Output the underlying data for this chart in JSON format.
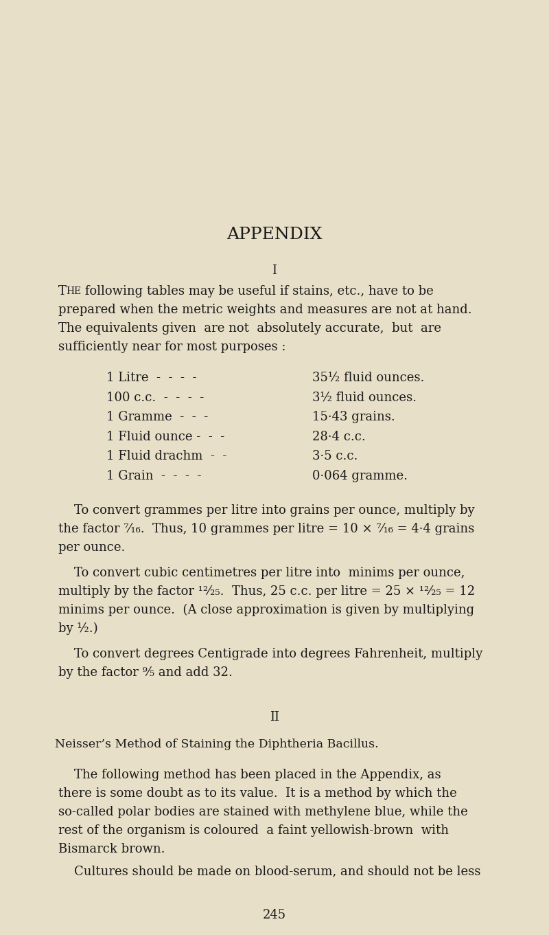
{
  "bg_color": "#e8dfc8",
  "text_color": "#1a1a1a",
  "page_width": 8.0,
  "page_height": 13.61,
  "title": "APPENDIX",
  "section_i": "I",
  "section_ii": "II",
  "intro_text_line0_T": "T",
  "intro_text_line0_HE": "HE",
  "intro_text_line0_rest": " following tables may be useful if stains, etc., have to be",
  "intro_text_lines": [
    "prepared when the metric weights and measures are not at hand.",
    "The equivalents given  are not  absolutely accurate,  but  are",
    "sufficiently near for most purposes :"
  ],
  "table_rows": [
    [
      "1 Litre  -  -  -  -",
      "35½ fluid ounces."
    ],
    [
      "100 c.c.  -  -  -  -",
      "3½ fluid ounces."
    ],
    [
      "1 Gramme  -  -  -",
      "15·43 grains."
    ],
    [
      "1 Fluid ounce -  -  -",
      "28·4 c.c."
    ],
    [
      "1 Fluid drachm  -  -",
      "3·5 c.c."
    ],
    [
      "1 Grain  -  -  -  -",
      "0·064 gramme."
    ]
  ],
  "para1_text_lines": [
    "    To convert grammes per litre into grains per ounce, multiply by",
    "the factor ⁷⁄₁₆.  Thus, 10 grammes per litre = 10 × ⁷⁄₁₆ = 4·4 grains",
    "per ounce."
  ],
  "para2_text_lines": [
    "    To convert cubic centimetres per litre into  minims per ounce,",
    "multiply by the factor ¹²⁄₂₅.  Thus, 25 c.c. per litre = 25 × ¹²⁄₂₅ = 12",
    "minims per ounce.  (A close approximation is given by multiplying",
    "by ½.)"
  ],
  "para3_text_lines": [
    "    To convert degrees Centigrade into degrees Fahrenheit, multiply",
    "by the factor ⁹⁄₅ and add 32."
  ],
  "section_ii_heading": "Neisser’s Method of Staining the Diphtheria Bacillus.",
  "para4_text_lines": [
    "    The following method has been placed in the Appendix, as",
    "there is some doubt as to its value.  It is a method by which the",
    "so-called polar bodies are stained with methylene blue, while the",
    "rest of the organism is coloured  a faint yellowish-brown  with",
    "Bismarck brown."
  ],
  "para5_text_lines": [
    "    Cultures should be made on blood-serum, and should not be less"
  ],
  "page_number": "245",
  "font_family": "serif"
}
